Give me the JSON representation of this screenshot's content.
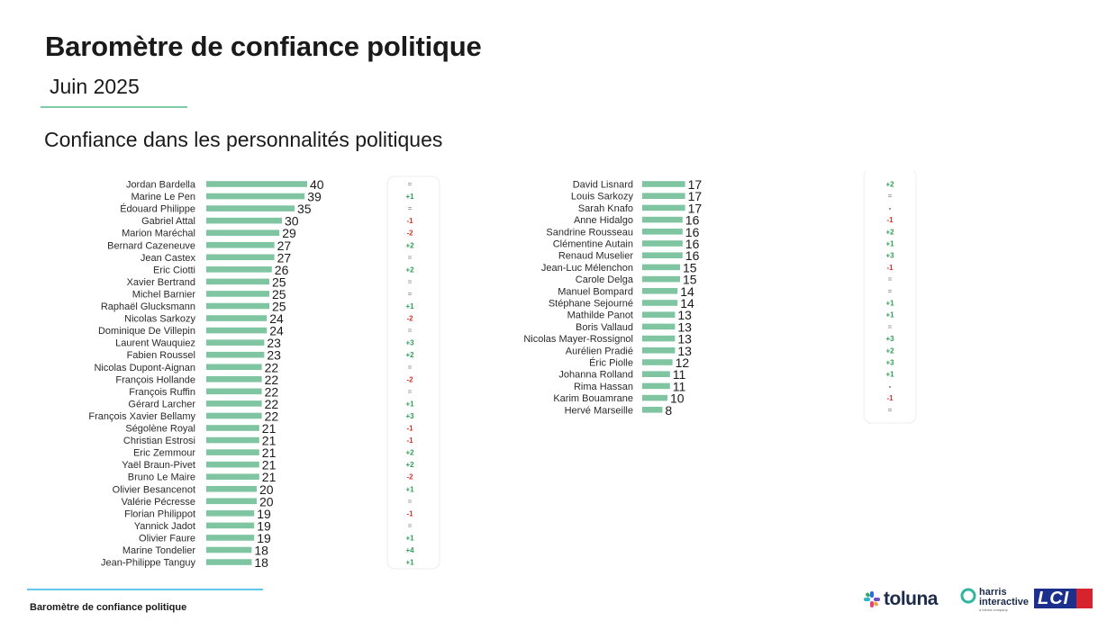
{
  "header": {
    "title": "Baromètre de confiance politique",
    "subtitle": "Juin 2025",
    "section_title": "Confiance dans les personnalités politiques"
  },
  "footer": {
    "label": "Baromètre de confiance politique"
  },
  "logos": {
    "toluna": "toluna",
    "harris_line1": "harris",
    "harris_line2": "interactive",
    "harris_sub": "a toluna company",
    "lci": "LCI"
  },
  "colors": {
    "bar": "#7fc5a2",
    "positive": "#2e9e55",
    "negative": "#d0342c",
    "neutral": "#9a9a9a",
    "accent_rule": "#7fcba7",
    "footer_rule": "#5fc6e8"
  },
  "chart_data": [
    {
      "type": "bar",
      "orientation": "horizontal",
      "xlim": [
        0,
        40
      ],
      "categories": [
        "Jordan Bardella",
        "Marine Le Pen",
        "Édouard Philippe",
        "Gabriel Attal",
        "Marion Maréchal",
        "Bernard Cazeneuve",
        "Jean Castex",
        "Eric Ciotti",
        "Xavier Bertrand",
        "Michel Barnier",
        "Raphaël Glucksmann",
        "Nicolas Sarkozy",
        "Dominique De Villepin",
        "Laurent Wauquiez",
        "Fabien Roussel",
        "Nicolas Dupont-Aignan",
        "François Hollande",
        "François Ruffin",
        "Gérard Larcher",
        "François Xavier Bellamy",
        "Ségolène Royal",
        "Christian Estrosi",
        "Eric Zemmour",
        "Yaël Braun-Pivet",
        "Bruno Le Maire",
        "Olivier Besancenot",
        "Valérie Pécresse",
        "Florian Philippot",
        "Yannick Jadot",
        "Olivier Faure",
        "Marine Tondelier",
        "Jean-Philippe Tanguy"
      ],
      "values": [
        40,
        39,
        35,
        30,
        29,
        27,
        27,
        26,
        25,
        25,
        25,
        24,
        24,
        23,
        23,
        22,
        22,
        22,
        22,
        22,
        21,
        21,
        21,
        21,
        21,
        20,
        20,
        19,
        19,
        19,
        18,
        18
      ],
      "changes": [
        "=",
        "+1",
        "=",
        "-1",
        "-2",
        "+2",
        "=",
        "+2",
        "=",
        "=",
        "+1",
        "-2",
        "=",
        "+3",
        "+2",
        "=",
        "-2",
        "=",
        "+1",
        "+3",
        "-1",
        "-1",
        "+2",
        "+2",
        "-2",
        "+1",
        "=",
        "-1",
        "=",
        "+1",
        "+4",
        "+1"
      ]
    },
    {
      "type": "bar",
      "orientation": "horizontal",
      "xlim": [
        0,
        40
      ],
      "categories": [
        "David Lisnard",
        "Louis Sarkozy",
        "Sarah Knafo",
        "Anne Hidalgo",
        "Sandrine Rousseau",
        "Clémentine Autain",
        "Renaud Muselier",
        "Jean-Luc Mélenchon",
        "Carole Delga",
        "Manuel Bompard",
        "Stéphane Sejourné",
        "Mathilde Panot",
        "Boris Vallaud",
        "Nicolas Mayer-Rossignol",
        "Aurélien Pradié",
        "Éric Piolle",
        "Johanna Rolland",
        "Rima Hassan",
        "Karim Bouamrane",
        "Hervé Marseille"
      ],
      "values": [
        17,
        17,
        17,
        16,
        16,
        16,
        16,
        15,
        15,
        14,
        14,
        13,
        13,
        13,
        13,
        12,
        11,
        11,
        10,
        8
      ],
      "changes": [
        "+2",
        "=",
        "-",
        "-1",
        "+2",
        "+1",
        "+3",
        "-1",
        "=",
        "=",
        "+1",
        "+1",
        "=",
        "+3",
        "+2",
        "+3",
        "+1",
        "-",
        "-1",
        "="
      ]
    }
  ]
}
